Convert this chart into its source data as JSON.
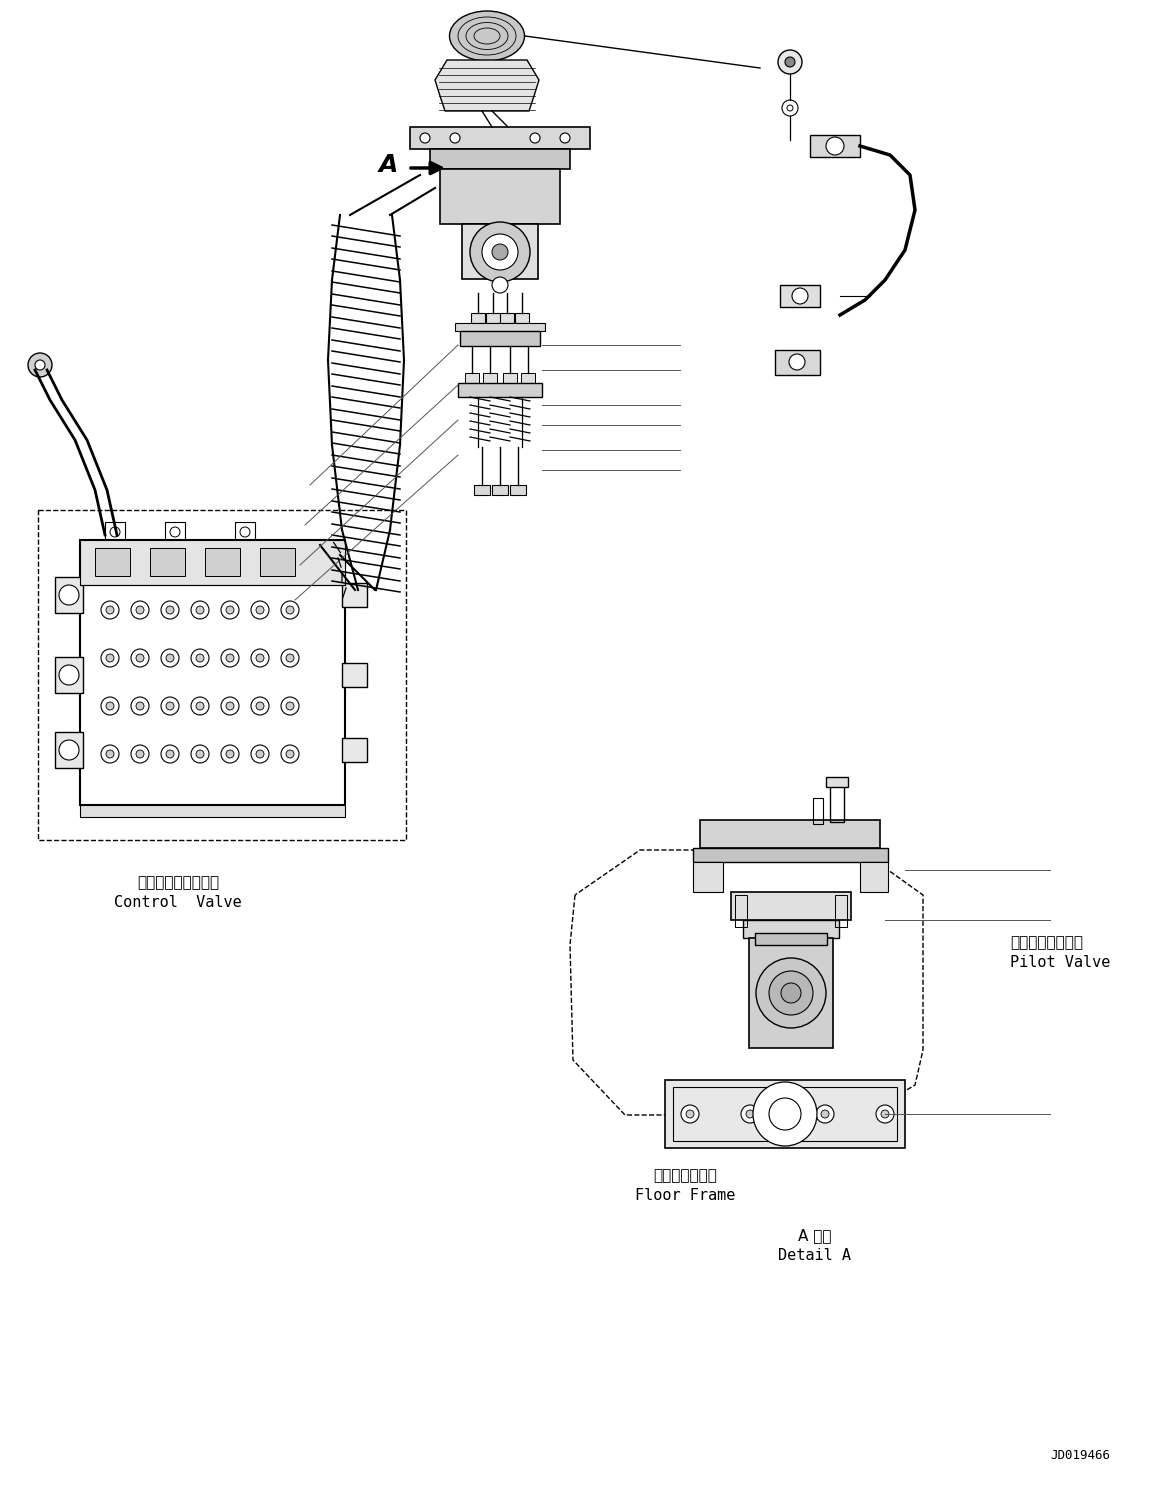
{
  "bg_color": "#ffffff",
  "line_color": "#000000",
  "figure_width": 11.57,
  "figure_height": 14.91,
  "dpi": 100,
  "labels": {
    "control_valve_jp": "コントロールバルブ",
    "control_valve_en": "Control  Valve",
    "pilot_valve_jp": "パイロットバルブ",
    "pilot_valve_en": "Pilot Valve",
    "floor_frame_jp": "フロアフレーム",
    "floor_frame_en": "Floor Frame",
    "detail_a_jp": "A 詳細",
    "detail_a_en": "Detail A",
    "arrow_label": "A",
    "part_number": "JD019466"
  },
  "font_sizes": {
    "label_jp": 11,
    "label_en": 11,
    "arrow_label": 18,
    "part_number": 9
  }
}
